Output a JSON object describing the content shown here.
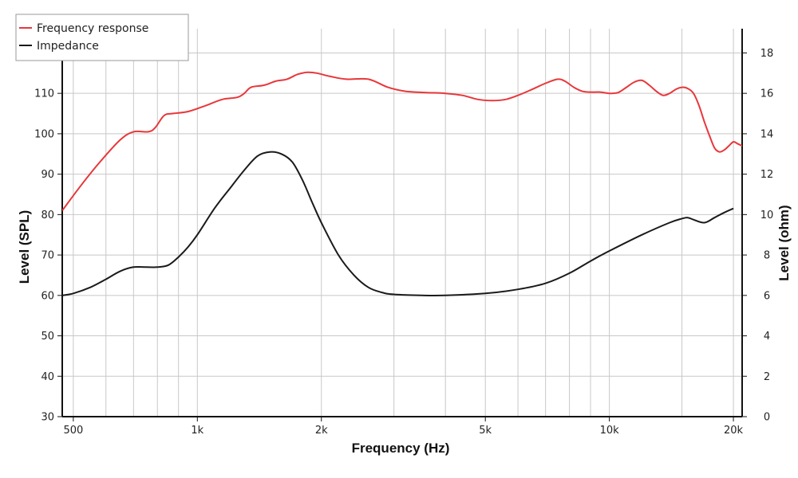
{
  "chart_data": {
    "type": "line",
    "title": "",
    "xlabel": "Frequency (Hz)",
    "ylabel_left": "Level (SPL)",
    "ylabel_right": "Level (ohm)",
    "x_scale": "log",
    "xlim": [
      470,
      21000
    ],
    "ylim_left": [
      30,
      126
    ],
    "ylim_right": [
      0,
      19.2
    ],
    "x_ticks": [
      500,
      1000,
      2000,
      5000,
      10000,
      20000
    ],
    "x_tick_labels": [
      "500",
      "1k",
      "2k",
      "5k",
      "10k",
      "20k"
    ],
    "x_minor_gridlines": [
      600,
      700,
      800,
      900,
      3000,
      4000,
      6000,
      7000,
      8000,
      9000,
      15000
    ],
    "y_ticks_left": [
      30,
      40,
      50,
      60,
      70,
      80,
      90,
      100,
      110,
      120
    ],
    "y_ticks_right": [
      0,
      2,
      4,
      6,
      8,
      10,
      12,
      14,
      16,
      18
    ],
    "grid": true,
    "legend_position": "top-left",
    "series": [
      {
        "name": "Frequency response",
        "axis": "left",
        "color": "#e8373a",
        "x": [
          470,
          520,
          580,
          650,
          700,
          760,
          790,
          830,
          870,
          950,
          1050,
          1150,
          1250,
          1300,
          1350,
          1450,
          1550,
          1650,
          1750,
          1850,
          1950,
          2100,
          2300,
          2600,
          2900,
          3200,
          3600,
          4000,
          4400,
          4800,
          5200,
          5600,
          6000,
          6500,
          7000,
          7500,
          7800,
          8200,
          8600,
          9000,
          9500,
          10000,
          10500,
          11000,
          11500,
          12000,
          12500,
          13000,
          13500,
          14000,
          14500,
          15000,
          15500,
          16000,
          16500,
          17000,
          17500,
          18000,
          18500,
          19000,
          19500,
          20000,
          20500,
          21000
        ],
        "y": [
          81,
          87,
          93,
          98.5,
          100.5,
          100.5,
          101.5,
          104.5,
          105,
          105.5,
          107,
          108.5,
          109,
          110,
          111.5,
          112,
          113,
          113.5,
          114.7,
          115.2,
          115,
          114.2,
          113.5,
          113.5,
          111.5,
          110.5,
          110.2,
          110,
          109.5,
          108.5,
          108.2,
          108.5,
          109.5,
          111,
          112.5,
          113.5,
          113,
          111.5,
          110.5,
          110.3,
          110.3,
          110,
          110.2,
          111.5,
          112.8,
          113.2,
          112,
          110.5,
          109.5,
          110,
          111,
          111.5,
          111.2,
          110,
          107,
          103,
          99.5,
          96.5,
          95.5,
          96,
          97,
          98,
          97.5,
          97
        ]
      },
      {
        "name": "Impedance",
        "axis": "right",
        "color": "#1a1a1a",
        "x": [
          470,
          500,
          550,
          600,
          650,
          700,
          750,
          800,
          850,
          900,
          950,
          1000,
          1100,
          1200,
          1300,
          1400,
          1500,
          1600,
          1700,
          1800,
          1900,
          2000,
          2200,
          2400,
          2600,
          2800,
          3000,
          3500,
          4000,
          5000,
          6000,
          7000,
          8000,
          9000,
          10000,
          12000,
          14000,
          15000,
          15500,
          16000,
          17000,
          18000,
          19000,
          20000
        ],
        "y": [
          6,
          6.1,
          6.4,
          6.8,
          7.2,
          7.4,
          7.4,
          7.4,
          7.5,
          7.9,
          8.4,
          9,
          10.3,
          11.3,
          12.2,
          12.9,
          13.1,
          13,
          12.6,
          11.7,
          10.6,
          9.6,
          8,
          7,
          6.4,
          6.15,
          6.05,
          6,
          6,
          6.1,
          6.3,
          6.6,
          7.1,
          7.7,
          8.2,
          9,
          9.6,
          9.8,
          9.85,
          9.75,
          9.6,
          9.85,
          10.1,
          10.3
        ]
      }
    ]
  }
}
